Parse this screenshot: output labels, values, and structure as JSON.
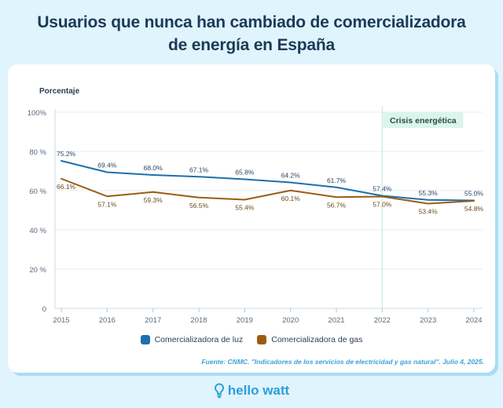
{
  "title_line1": "Usuarios que nunca han cambiado de comercializadora",
  "title_line2": "de energía en España",
  "brand": {
    "name": "hello watt",
    "icon": "lightbulb-icon"
  },
  "source": "Fuente: CNMC. \"Indicadores de los servicios de electricidad y gas natural\". Julio 4, 2025.",
  "colors": {
    "luz": "#1f6fab",
    "gas": "#9a5d12",
    "grid": "#e6edf3",
    "axis": "#cfd9e3",
    "crisis_line": "#c8ece0",
    "crisis_box": "#dbf5ea",
    "label_luz": "#2b4766",
    "label_gas": "#6b4a1e"
  },
  "chart_data": {
    "type": "line",
    "title": "Usuarios que nunca han cambiado de comercializadora de energía en España",
    "xlabel": "",
    "ylabel": "Porcentaje",
    "x": [
      "2015",
      "2016",
      "2017",
      "2018",
      "2019",
      "2020",
      "2021",
      "2022",
      "2023",
      "2024"
    ],
    "ylim": [
      0,
      100
    ],
    "yticks": [
      0,
      20,
      40,
      60,
      80,
      100
    ],
    "ytick_labels": [
      "0",
      "20 %",
      "40 %",
      "60 %",
      "80 %",
      "100%"
    ],
    "grid": true,
    "legend_position": "bottom-center",
    "series": [
      {
        "name": "Comercializadora de luz",
        "values": [
          75.2,
          69.4,
          68.0,
          67.1,
          65.8,
          64.2,
          61.7,
          57.4,
          55.3,
          55.0
        ],
        "labels": [
          "75.2%",
          "69.4%",
          "68.0%",
          "67.1%",
          "65.8%",
          "64.2%",
          "61.7%",
          "57.4%",
          "55.3%",
          "55.0%"
        ]
      },
      {
        "name": "Comercializadora de gas",
        "values": [
          66.1,
          57.1,
          59.3,
          56.5,
          55.4,
          60.1,
          56.7,
          57.0,
          53.4,
          54.8
        ],
        "labels": [
          "66.1%",
          "57.1%",
          "59.3%",
          "56.5%",
          "55.4%",
          "60.1%",
          "56.7%",
          "57.0%",
          "53.4%",
          "54.8%"
        ]
      }
    ],
    "annotations": [
      {
        "text": "Crisis energética",
        "x": "2022"
      }
    ]
  }
}
